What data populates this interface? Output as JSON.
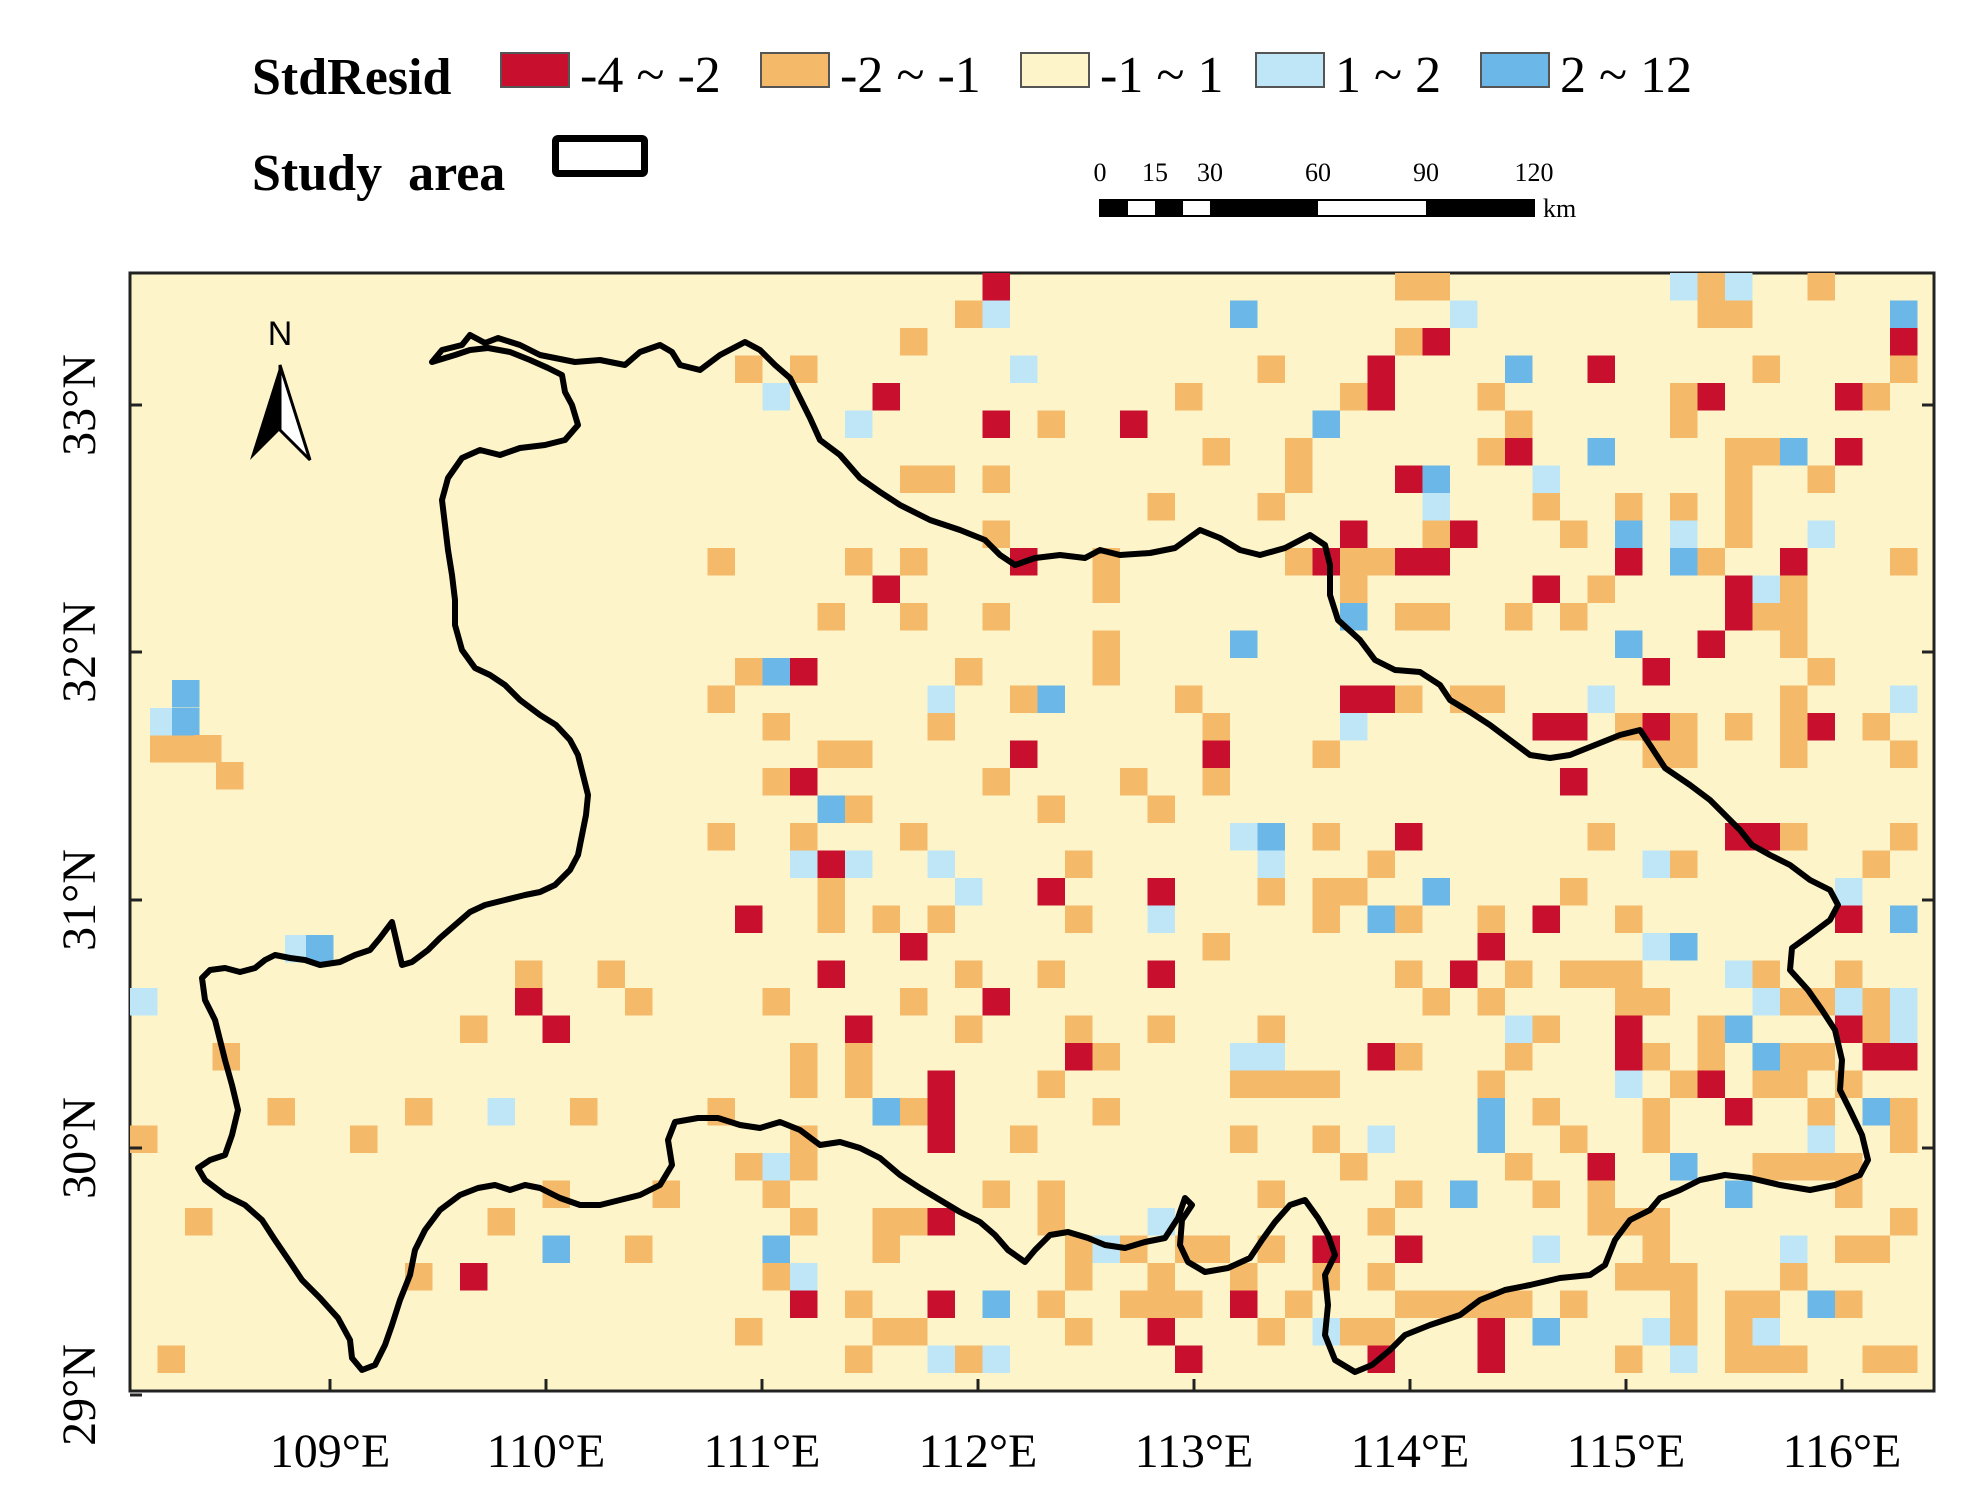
{
  "legend": {
    "title": "StdResid",
    "classes": [
      {
        "label": "-4 ~ -2",
        "color": "#c8102e"
      },
      {
        "label": "-2 ~ -1",
        "color": "#f5b96a"
      },
      {
        "label": "-1 ~ 1",
        "color": "#fdf5c9"
      },
      {
        "label": "1 ~ 2",
        "color": "#bfe6f7"
      },
      {
        "label": "2 ~ 12",
        "color": "#6bb8e8"
      }
    ],
    "study_area_label": "Study  area"
  },
  "scale_bar": {
    "labels": [
      "0",
      "15",
      "30",
      "60",
      "90",
      "120"
    ],
    "unit": "km"
  },
  "north_arrow": {
    "label": "N",
    "icon": "north-arrow-icon"
  },
  "axes": {
    "x_ticks": [
      "109°E",
      "110°E",
      "111°E",
      "112°E",
      "113°E",
      "114°E",
      "115°E",
      "116°E"
    ],
    "y_ticks": [
      "29°N",
      "30°N",
      "31°N",
      "32°N",
      "33°N"
    ]
  },
  "colors": {
    "background": "#fdf5c9",
    "boundary": "#000000"
  }
}
